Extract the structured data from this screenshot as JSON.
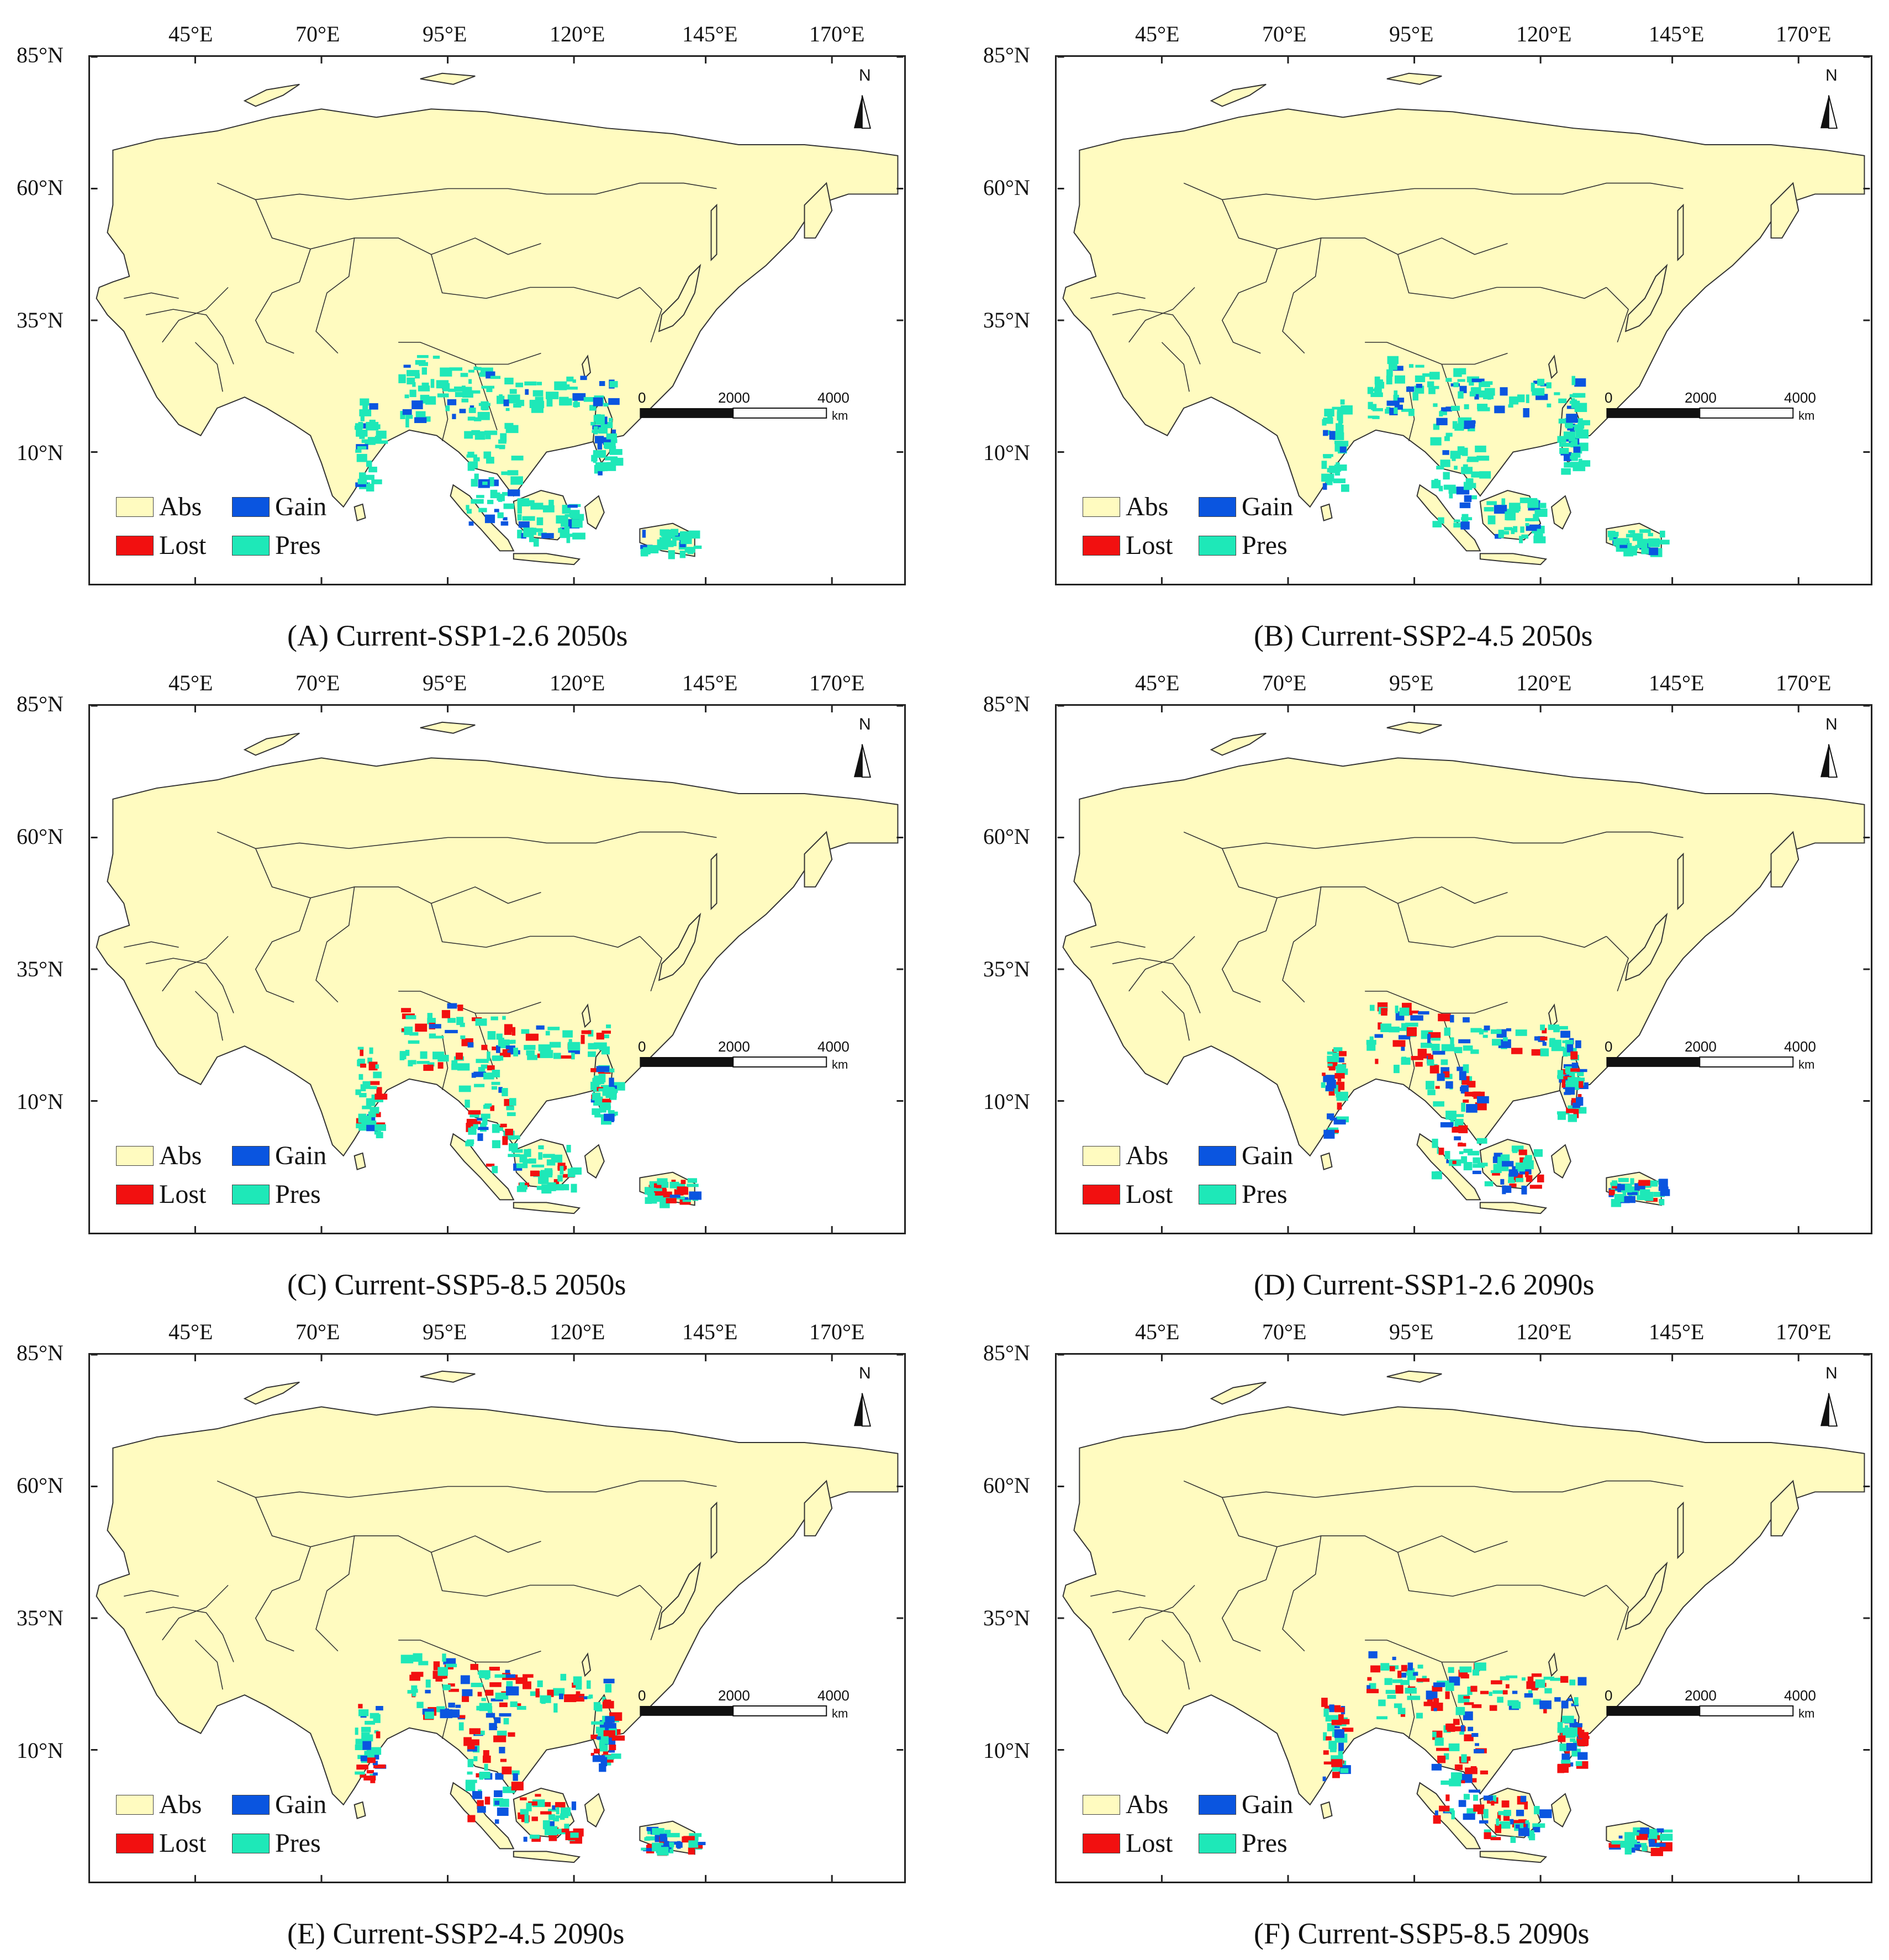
{
  "lon_labels": [
    "45°E",
    "70°E",
    "95°E",
    "120°E",
    "145°E",
    "170°E"
  ],
  "lat_labels": [
    "85°N",
    "60°N",
    "35°N",
    "10°N"
  ],
  "legend": {
    "abs": "Abs",
    "gain": "Gain",
    "lost": "Lost",
    "pres": "Pres"
  },
  "colors": {
    "abs": "#fffbc0",
    "gain": "#0a55e0",
    "lost": "#f21010",
    "pres": "#1ee8b8",
    "outline": "#333333"
  },
  "scale": {
    "zero": "0",
    "mid": "2000",
    "max": "4000",
    "unit": "km"
  },
  "north_label": "N",
  "panels": [
    {
      "caption": "(A) Current-SSP1-2.6 2050s",
      "lost_level": 0.0,
      "gain_level": 0.5
    },
    {
      "caption": "(B) Current-SSP2-4.5 2050s",
      "lost_level": 0.0,
      "gain_level": 0.7
    },
    {
      "caption": "(C) Current-SSP5-8.5 2050s",
      "lost_level": 0.7,
      "gain_level": 0.3
    },
    {
      "caption": "(D) Current-SSP1-2.6 2090s",
      "lost_level": 0.6,
      "gain_level": 0.8
    },
    {
      "caption": "(E) Current-SSP2-4.5 2090s",
      "lost_level": 0.8,
      "gain_level": 0.8
    },
    {
      "caption": "(F) Current-SSP5-8.5 2090s",
      "lost_level": 0.9,
      "gain_level": 0.8
    }
  ]
}
